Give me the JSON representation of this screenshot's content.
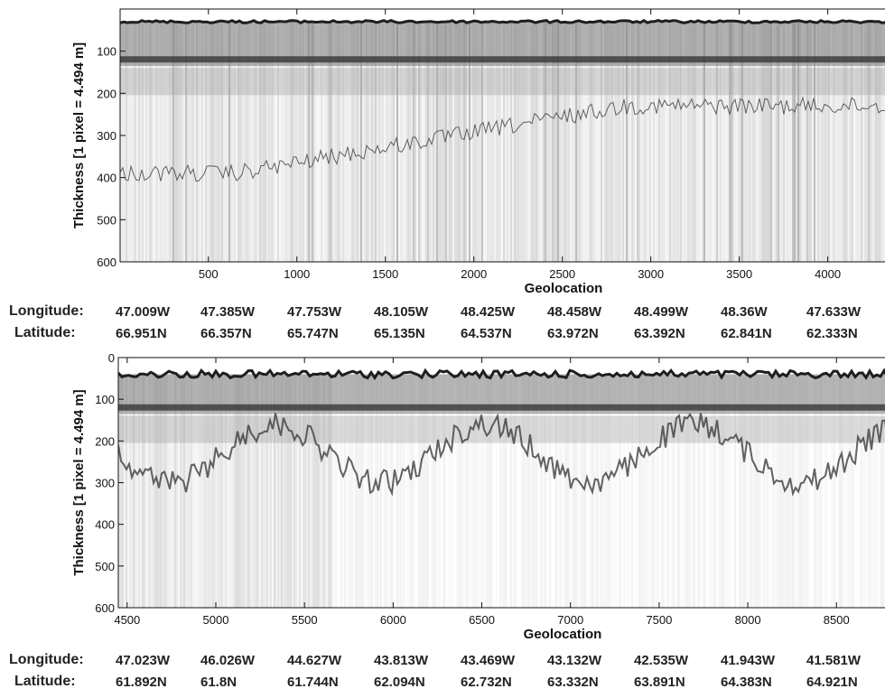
{
  "chart_data": [
    {
      "type": "heatmap",
      "title": "",
      "xlabel": "Geolocation",
      "ylabel": "Thickness [1 pixel = 4.494 m]",
      "xlim": [
        1,
        4400
      ],
      "ylim": [
        600,
        0
      ],
      "x_ticks": [
        500,
        1000,
        1500,
        2000,
        2500,
        3000,
        3500,
        4000
      ],
      "y_ticks": [
        100,
        200,
        300,
        400,
        500,
        600
      ],
      "grid": false,
      "colormap": "grayscale",
      "surface_depth_approx": 30,
      "bright_layer_depth_approx": 120,
      "longitude": [
        "47.009W",
        "47.385W",
        "47.753W",
        "48.105W",
        "48.425W",
        "48.458W",
        "48.499W",
        "48.36W",
        "47.633W"
      ],
      "latitude": [
        "66.951N",
        "66.357N",
        "65.747N",
        "65.135N",
        "64.537N",
        "63.972N",
        "63.392N",
        "62.841N",
        "62.333N"
      ]
    },
    {
      "type": "heatmap",
      "title": "",
      "xlabel": "Geolocation",
      "ylabel": "Thickness [1 pixel = 4.494 m]",
      "xlim": [
        4450,
        8850
      ],
      "ylim": [
        600,
        0
      ],
      "x_ticks": [
        4500,
        5000,
        5500,
        6000,
        6500,
        7000,
        7500,
        8000,
        8500
      ],
      "y_ticks": [
        0,
        100,
        200,
        300,
        400,
        500,
        600
      ],
      "grid": false,
      "colormap": "grayscale",
      "surface_depth_approx": 40,
      "bright_layer_depth_approx": 120,
      "longitude": [
        "47.023W",
        "46.026W",
        "44.627W",
        "43.813W",
        "43.469W",
        "43.132W",
        "42.535W",
        "41.943W",
        "41.581W"
      ],
      "latitude": [
        "61.892N",
        "61.8N",
        "61.744N",
        "62.094N",
        "62.732N",
        "63.332N",
        "63.891N",
        "64.383N",
        "64.921N"
      ]
    }
  ],
  "labels": {
    "longitude": "Longitude:",
    "latitude": "Latitude:"
  },
  "colors": {
    "background": "#ffffff",
    "axis": "#111111",
    "surface": "#2a2a2a"
  }
}
